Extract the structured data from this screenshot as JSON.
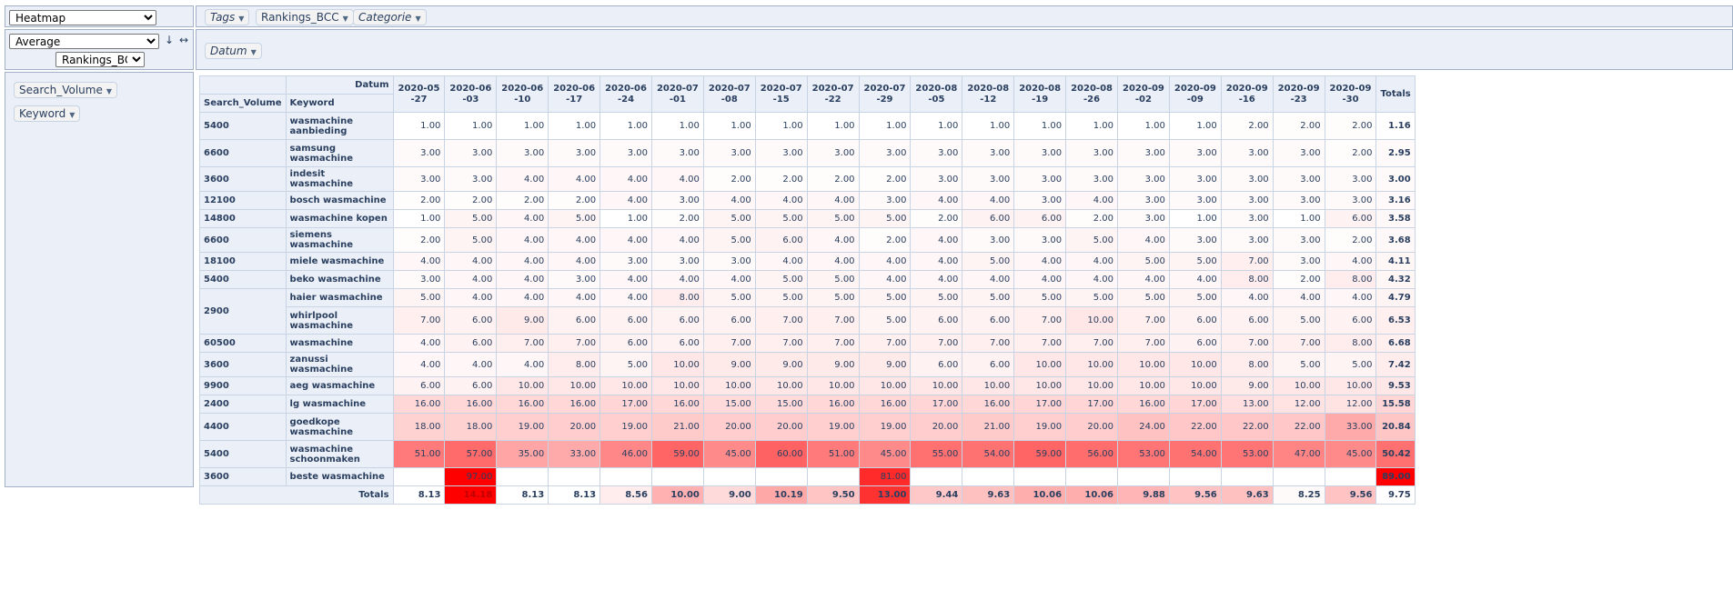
{
  "controls": {
    "renderer": "Heatmap",
    "aggregator": "Average",
    "sort_icon": "↓",
    "swap_icon": "↔",
    "value_field": "Rankings_BCC"
  },
  "unused_fields": [
    "Tags",
    "Rankings_BCC",
    "Categorie"
  ],
  "col_fields": [
    "Datum"
  ],
  "row_fields": [
    "Search_Volume",
    "Keyword"
  ],
  "table": {
    "col_attr_label": "Datum",
    "row_attr_labels": [
      "Search_Volume",
      "Keyword"
    ],
    "columns": [
      "2020-05-27",
      "2020-06-03",
      "2020-06-10",
      "2020-06-17",
      "2020-06-24",
      "2020-07-01",
      "2020-07-08",
      "2020-07-15",
      "2020-07-22",
      "2020-07-29",
      "2020-08-05",
      "2020-08-12",
      "2020-08-19",
      "2020-08-26",
      "2020-09-02",
      "2020-09-09",
      "2020-09-16",
      "2020-09-23",
      "2020-09-30"
    ],
    "totals_label": "Totals",
    "rows": [
      {
        "volume": "5400",
        "keyword": "wasmachine aanbieding",
        "values": [
          "1.00",
          "1.00",
          "1.00",
          "1.00",
          "1.00",
          "1.00",
          "1.00",
          "1.00",
          "1.00",
          "1.00",
          "1.00",
          "1.00",
          "1.00",
          "1.00",
          "1.00",
          "1.00",
          "2.00",
          "2.00",
          "2.00"
        ],
        "total": "1.16"
      },
      {
        "volume": "6600",
        "keyword": "samsung wasmachine",
        "values": [
          "3.00",
          "3.00",
          "3.00",
          "3.00",
          "3.00",
          "3.00",
          "3.00",
          "3.00",
          "3.00",
          "3.00",
          "3.00",
          "3.00",
          "3.00",
          "3.00",
          "3.00",
          "3.00",
          "3.00",
          "3.00",
          "2.00"
        ],
        "total": "2.95"
      },
      {
        "volume": "3600",
        "keyword": "indesit wasmachine",
        "values": [
          "3.00",
          "3.00",
          "4.00",
          "4.00",
          "4.00",
          "4.00",
          "2.00",
          "2.00",
          "2.00",
          "2.00",
          "3.00",
          "3.00",
          "3.00",
          "3.00",
          "3.00",
          "3.00",
          "3.00",
          "3.00",
          "3.00"
        ],
        "total": "3.00"
      },
      {
        "volume": "12100",
        "keyword": "bosch wasmachine",
        "values": [
          "2.00",
          "2.00",
          "2.00",
          "2.00",
          "4.00",
          "3.00",
          "4.00",
          "4.00",
          "4.00",
          "3.00",
          "4.00",
          "4.00",
          "3.00",
          "4.00",
          "3.00",
          "3.00",
          "3.00",
          "3.00",
          "3.00"
        ],
        "total": "3.16"
      },
      {
        "volume": "14800",
        "keyword": "wasmachine kopen",
        "values": [
          "1.00",
          "5.00",
          "4.00",
          "5.00",
          "1.00",
          "2.00",
          "5.00",
          "5.00",
          "5.00",
          "5.00",
          "2.00",
          "6.00",
          "6.00",
          "2.00",
          "3.00",
          "1.00",
          "3.00",
          "1.00",
          "6.00"
        ],
        "total": "3.58"
      },
      {
        "volume": "6600",
        "keyword": "siemens wasmachine",
        "values": [
          "2.00",
          "5.00",
          "4.00",
          "4.00",
          "4.00",
          "4.00",
          "5.00",
          "6.00",
          "4.00",
          "2.00",
          "4.00",
          "3.00",
          "3.00",
          "5.00",
          "4.00",
          "3.00",
          "3.00",
          "3.00",
          "2.00"
        ],
        "total": "3.68"
      },
      {
        "volume": "18100",
        "keyword": "miele wasmachine",
        "values": [
          "4.00",
          "4.00",
          "4.00",
          "4.00",
          "3.00",
          "3.00",
          "3.00",
          "4.00",
          "4.00",
          "4.00",
          "4.00",
          "5.00",
          "4.00",
          "4.00",
          "5.00",
          "5.00",
          "7.00",
          "3.00",
          "4.00"
        ],
        "total": "4.11"
      },
      {
        "volume": "5400",
        "keyword": "beko wasmachine",
        "values": [
          "3.00",
          "4.00",
          "4.00",
          "3.00",
          "4.00",
          "4.00",
          "4.00",
          "5.00",
          "5.00",
          "4.00",
          "4.00",
          "4.00",
          "4.00",
          "4.00",
          "4.00",
          "4.00",
          "8.00",
          "2.00",
          "8.00"
        ],
        "total": "4.32"
      },
      {
        "volume": "2900",
        "keyword": "haier wasmachine",
        "values": [
          "5.00",
          "4.00",
          "4.00",
          "4.00",
          "4.00",
          "8.00",
          "5.00",
          "5.00",
          "5.00",
          "5.00",
          "5.00",
          "5.00",
          "5.00",
          "5.00",
          "5.00",
          "5.00",
          "4.00",
          "4.00",
          "4.00"
        ],
        "total": "4.79"
      },
      {
        "volume": "",
        "keyword": "whirlpool wasmachine",
        "values": [
          "7.00",
          "6.00",
          "9.00",
          "6.00",
          "6.00",
          "6.00",
          "6.00",
          "7.00",
          "7.00",
          "5.00",
          "6.00",
          "6.00",
          "7.00",
          "10.00",
          "7.00",
          "6.00",
          "6.00",
          "5.00",
          "6.00"
        ],
        "total": "6.53"
      },
      {
        "volume": "60500",
        "keyword": "wasmachine",
        "values": [
          "4.00",
          "6.00",
          "7.00",
          "7.00",
          "6.00",
          "6.00",
          "7.00",
          "7.00",
          "7.00",
          "7.00",
          "7.00",
          "7.00",
          "7.00",
          "7.00",
          "7.00",
          "6.00",
          "7.00",
          "7.00",
          "8.00"
        ],
        "total": "6.68"
      },
      {
        "volume": "3600",
        "keyword": "zanussi wasmachine",
        "values": [
          "4.00",
          "4.00",
          "4.00",
          "8.00",
          "5.00",
          "10.00",
          "9.00",
          "9.00",
          "9.00",
          "9.00",
          "6.00",
          "6.00",
          "10.00",
          "10.00",
          "10.00",
          "10.00",
          "8.00",
          "5.00",
          "5.00"
        ],
        "total": "7.42"
      },
      {
        "volume": "9900",
        "keyword": "aeg wasmachine",
        "values": [
          "6.00",
          "6.00",
          "10.00",
          "10.00",
          "10.00",
          "10.00",
          "10.00",
          "10.00",
          "10.00",
          "10.00",
          "10.00",
          "10.00",
          "10.00",
          "10.00",
          "10.00",
          "10.00",
          "9.00",
          "10.00",
          "10.00"
        ],
        "total": "9.53"
      },
      {
        "volume": "2400",
        "keyword": "lg wasmachine",
        "values": [
          "16.00",
          "16.00",
          "16.00",
          "16.00",
          "17.00",
          "16.00",
          "15.00",
          "15.00",
          "16.00",
          "16.00",
          "17.00",
          "16.00",
          "17.00",
          "17.00",
          "16.00",
          "17.00",
          "13.00",
          "12.00",
          "12.00"
        ],
        "total": "15.58"
      },
      {
        "volume": "4400",
        "keyword": "goedkope wasmachine",
        "values": [
          "18.00",
          "18.00",
          "19.00",
          "20.00",
          "19.00",
          "21.00",
          "20.00",
          "20.00",
          "19.00",
          "19.00",
          "20.00",
          "21.00",
          "19.00",
          "20.00",
          "24.00",
          "22.00",
          "22.00",
          "22.00",
          "33.00"
        ],
        "total": "20.84"
      },
      {
        "volume": "5400",
        "keyword": "wasmachine schoonmaken",
        "values": [
          "51.00",
          "57.00",
          "35.00",
          "33.00",
          "46.00",
          "59.00",
          "45.00",
          "60.00",
          "51.00",
          "45.00",
          "55.00",
          "54.00",
          "59.00",
          "56.00",
          "53.00",
          "54.00",
          "53.00",
          "47.00",
          "45.00"
        ],
        "total": "50.42"
      },
      {
        "volume": "3600",
        "keyword": "beste wasmachine",
        "values": [
          "",
          "97.00",
          "",
          "",
          "",
          "",
          "",
          "",
          "",
          "81.00",
          "",
          "",
          "",
          "",
          "",
          "",
          "",
          "",
          ""
        ],
        "total": "89.00"
      }
    ],
    "col_totals": [
      "8.13",
      "14.18",
      "8.13",
      "8.13",
      "8.56",
      "10.00",
      "9.00",
      "10.19",
      "9.50",
      "13.00",
      "9.44",
      "9.63",
      "10.06",
      "10.06",
      "9.88",
      "9.56",
      "9.63",
      "8.25",
      "9.56"
    ],
    "grand_total": "9.75"
  }
}
